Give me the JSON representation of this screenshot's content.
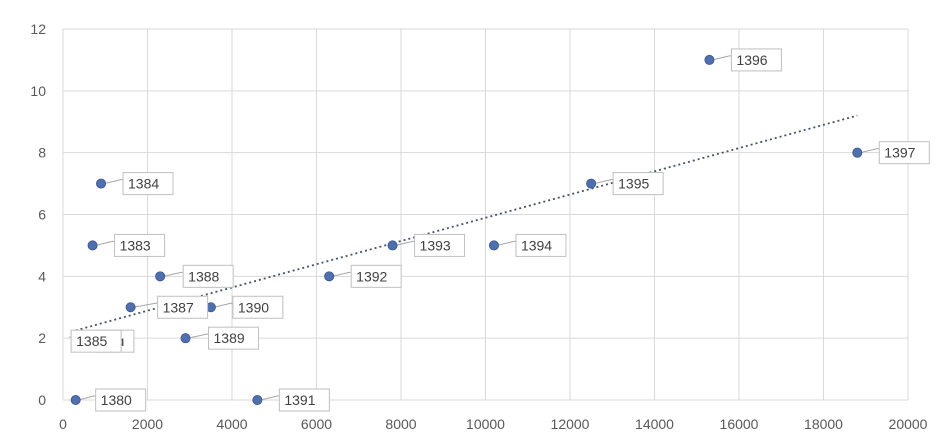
{
  "chart_data": {
    "type": "scatter",
    "title": "",
    "xlabel": "",
    "ylabel": "",
    "xlim": [
      0,
      20000
    ],
    "ylim": [
      0,
      12
    ],
    "x_ticks": [
      "0",
      "2000",
      "4000",
      "6000",
      "8000",
      "10000",
      "12000",
      "14000",
      "16000",
      "18000",
      "20000"
    ],
    "y_ticks": [
      "0",
      "2",
      "4",
      "6",
      "8",
      "10",
      "12"
    ],
    "grid": true,
    "legend": "none",
    "series": [
      {
        "points": [
          {
            "label": "1380",
            "x": 300,
            "y": 0
          },
          {
            "label": "13ɑ",
            "x": 400,
            "y": 2
          },
          {
            "label": "1383",
            "x": 700,
            "y": 5
          },
          {
            "label": "1384",
            "x": 900,
            "y": 7
          },
          {
            "label": "1385",
            "x": 500,
            "y": 2
          },
          {
            "label": "1387",
            "x": 1600,
            "y": 3
          },
          {
            "label": "1388",
            "x": 2300,
            "y": 4
          },
          {
            "label": "1389",
            "x": 2900,
            "y": 2
          },
          {
            "label": "1390",
            "x": 3500,
            "y": 3
          },
          {
            "label": "1391",
            "x": 4600,
            "y": 0
          },
          {
            "label": "1392",
            "x": 6300,
            "y": 4
          },
          {
            "label": "1393",
            "x": 7800,
            "y": 5
          },
          {
            "label": "1394",
            "x": 10200,
            "y": 5
          },
          {
            "label": "1395",
            "x": 12500,
            "y": 7
          },
          {
            "label": "1396",
            "x": 15300,
            "y": 11
          },
          {
            "label": "1397",
            "x": 18800,
            "y": 8
          }
        ]
      }
    ],
    "trendline": {
      "type": "linear",
      "from": {
        "x": 300,
        "y": 2.25
      },
      "to": {
        "x": 18800,
        "y": 9.2
      }
    },
    "colors": {
      "point": "#4f6fad",
      "trend": "#44546a",
      "grid": "#d9d9d9"
    }
  }
}
